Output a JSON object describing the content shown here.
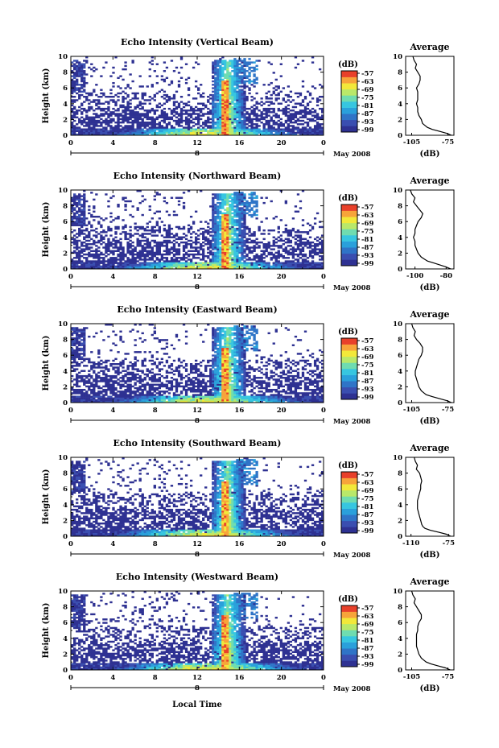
{
  "colormap": [
    "#2e3192",
    "#3a4eb0",
    "#2f74c7",
    "#2aa0db",
    "#37c6e0",
    "#6fdcb0",
    "#b9e86a",
    "#f2e83a",
    "#f7a43a",
    "#e8402a"
  ],
  "month_label": "May 2008",
  "x_day_label": "8",
  "x_axis_label": "Local Time",
  "chart_data": [
    {
      "type": "heatmap",
      "title": "Echo Intensity (Vertical Beam)",
      "ylabel": "Height (km)",
      "x_ticks": [
        "0",
        "4",
        "8",
        "12",
        "16",
        "20",
        "0"
      ],
      "y_ticks": [
        "0",
        "2",
        "4",
        "6",
        "8",
        "10"
      ],
      "xlim": [
        0,
        24
      ],
      "ylim": [
        0,
        10
      ],
      "colorbar": {
        "label": "(dB)",
        "ticks": [
          "-57",
          "-63",
          "-69",
          "-75",
          "-81",
          "-87",
          "-93",
          "-99"
        ]
      },
      "profile": {
        "type": "line",
        "title": "Average",
        "xlabel": "(dB)",
        "x_ticks": [
          "-105",
          "-75"
        ],
        "xlim": [
          -110,
          -70
        ],
        "height": [
          0,
          0.25,
          0.5,
          0.75,
          1,
          1.25,
          1.5,
          2,
          2.5,
          3,
          3.5,
          4,
          4.5,
          5,
          5.5,
          6,
          6.5,
          7,
          7.5,
          8,
          8.5,
          9,
          9.5,
          10
        ],
        "values": [
          -72,
          -76,
          -82,
          -88,
          -92,
          -94,
          -96,
          -97,
          -99,
          -100,
          -100,
          -101,
          -100,
          -100,
          -100,
          -101,
          -99,
          -98,
          -98,
          -100,
          -102,
          -101,
          -103,
          -104
        ]
      }
    },
    {
      "type": "heatmap",
      "title": "Echo Intensity (Northward Beam)",
      "ylabel": "Height (km)",
      "x_ticks": [
        "0",
        "4",
        "8",
        "12",
        "16",
        "20",
        "0"
      ],
      "y_ticks": [
        "0",
        "2",
        "4",
        "6",
        "8",
        "10"
      ],
      "xlim": [
        0,
        24
      ],
      "ylim": [
        0,
        10
      ],
      "colorbar": {
        "label": "(dB)",
        "ticks": [
          "-57",
          "-63",
          "-69",
          "-75",
          "-81",
          "-87",
          "-93",
          "-99"
        ]
      },
      "profile": {
        "type": "line",
        "title": "Average",
        "xlabel": "(dB)",
        "x_ticks": [
          "-100",
          "-80"
        ],
        "xlim": [
          -106,
          -75
        ],
        "height": [
          0,
          0.25,
          0.5,
          0.75,
          1,
          1.25,
          1.5,
          2,
          2.5,
          3,
          3.5,
          4,
          4.5,
          5,
          5.5,
          6,
          6.5,
          7,
          7.5,
          8,
          8.5,
          9,
          9.5,
          10
        ],
        "values": [
          -77,
          -80,
          -84,
          -88,
          -92,
          -94,
          -96,
          -98,
          -99,
          -100,
          -100,
          -101,
          -100,
          -100,
          -99,
          -98,
          -96,
          -95,
          -97,
          -99,
          -101,
          -100,
          -102,
          -103
        ]
      }
    },
    {
      "type": "heatmap",
      "title": "Echo Intensity (Eastward Beam)",
      "ylabel": "Height (km)",
      "x_ticks": [
        "0",
        "4",
        "8",
        "12",
        "16",
        "20",
        "0"
      ],
      "y_ticks": [
        "0",
        "2",
        "4",
        "6",
        "8",
        "10"
      ],
      "xlim": [
        0,
        24
      ],
      "ylim": [
        0,
        10
      ],
      "colorbar": {
        "label": "(dB)",
        "ticks": [
          "-57",
          "-63",
          "-69",
          "-75",
          "-81",
          "-87",
          "-93",
          "-99"
        ]
      },
      "profile": {
        "type": "line",
        "title": "Average",
        "xlabel": "(dB)",
        "x_ticks": [
          "-105",
          "-75"
        ],
        "xlim": [
          -110,
          -70
        ],
        "height": [
          0,
          0.25,
          0.5,
          0.75,
          1,
          1.25,
          1.5,
          2,
          2.5,
          3,
          3.5,
          4,
          4.5,
          5,
          5.5,
          6,
          6.5,
          7,
          7.5,
          8,
          8.5,
          9,
          9.5,
          10
        ],
        "values": [
          -72,
          -76,
          -82,
          -88,
          -93,
          -95,
          -97,
          -99,
          -100,
          -101,
          -102,
          -102,
          -101,
          -100,
          -99,
          -97,
          -96,
          -96,
          -98,
          -101,
          -103,
          -102,
          -104,
          -105
        ]
      }
    },
    {
      "type": "heatmap",
      "title": "Echo Intensity (Southward Beam)",
      "ylabel": "Height (km)",
      "x_ticks": [
        "0",
        "4",
        "8",
        "12",
        "16",
        "20",
        "0"
      ],
      "y_ticks": [
        "0",
        "2",
        "4",
        "6",
        "8",
        "10"
      ],
      "xlim": [
        0,
        24
      ],
      "ylim": [
        0,
        10
      ],
      "colorbar": {
        "label": "(dB)",
        "ticks": [
          "-57",
          "-63",
          "-69",
          "-75",
          "-81",
          "-87",
          "-93",
          "-99"
        ]
      },
      "profile": {
        "type": "line",
        "title": "Average",
        "xlabel": "(dB)",
        "x_ticks": [
          "-110",
          "-75"
        ],
        "xlim": [
          -115,
          -70
        ],
        "height": [
          0,
          0.25,
          0.5,
          0.75,
          1,
          1.25,
          1.5,
          2,
          2.5,
          3,
          3.5,
          4,
          4.5,
          5,
          5.5,
          6,
          6.5,
          7,
          7.5,
          8,
          8.5,
          9,
          9.5,
          10
        ],
        "values": [
          -73,
          -77,
          -84,
          -92,
          -97,
          -99,
          -100,
          -101,
          -102,
          -103,
          -104,
          -104,
          -104,
          -103,
          -102,
          -101,
          -101,
          -100,
          -101,
          -102,
          -105,
          -104,
          -106,
          -107
        ]
      }
    },
    {
      "type": "heatmap",
      "title": "Echo Intensity (Westward Beam)",
      "ylabel": "Height (km)",
      "x_ticks": [
        "0",
        "4",
        "8",
        "12",
        "16",
        "20",
        "0"
      ],
      "y_ticks": [
        "0",
        "2",
        "4",
        "6",
        "8",
        "10"
      ],
      "xlim": [
        0,
        24
      ],
      "ylim": [
        0,
        10
      ],
      "colorbar": {
        "label": "(dB)",
        "ticks": [
          "-57",
          "-63",
          "-69",
          "-75",
          "-81",
          "-87",
          "-93",
          "-99"
        ]
      },
      "profile": {
        "type": "line",
        "title": "Average",
        "xlabel": "(dB)",
        "x_ticks": [
          "-105",
          "-75"
        ],
        "xlim": [
          -110,
          -70
        ],
        "height": [
          0,
          0.25,
          0.5,
          0.75,
          1,
          1.25,
          1.5,
          2,
          2.5,
          3,
          3.5,
          4,
          4.5,
          5,
          5.5,
          6,
          6.5,
          7,
          7.5,
          8,
          8.5,
          9,
          9.5,
          10
        ],
        "values": [
          -73,
          -77,
          -83,
          -89,
          -93,
          -95,
          -97,
          -99,
          -100,
          -101,
          -101,
          -101,
          -101,
          -100,
          -100,
          -99,
          -97,
          -97,
          -99,
          -101,
          -103,
          -102,
          -104,
          -105
        ]
      }
    }
  ]
}
